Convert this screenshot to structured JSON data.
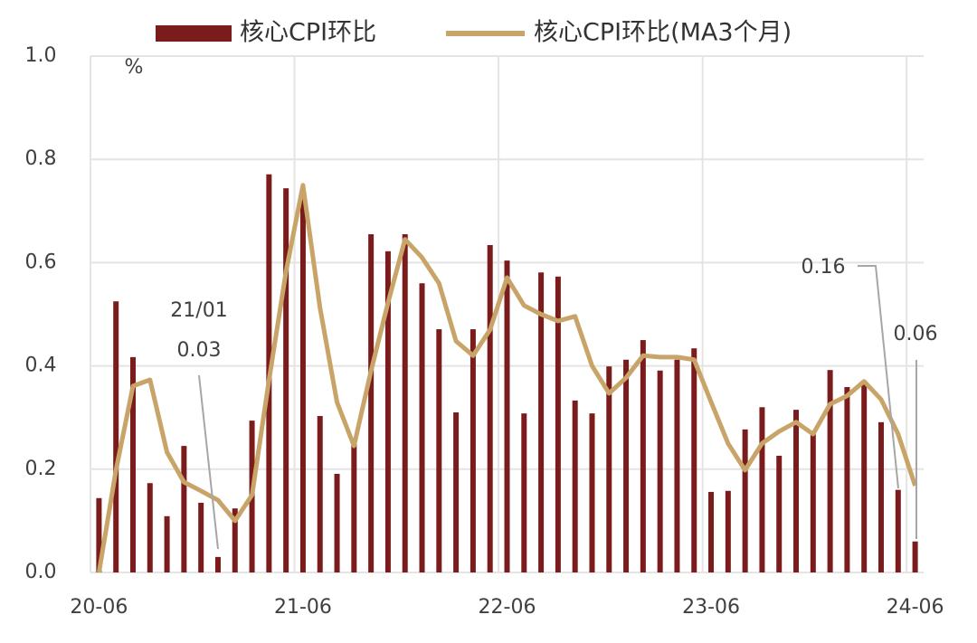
{
  "chart_data": {
    "type": "bar",
    "categories": [
      "20-06",
      null,
      null,
      null,
      null,
      null,
      null,
      null,
      null,
      null,
      null,
      null,
      "21-06",
      null,
      null,
      null,
      null,
      null,
      null,
      null,
      null,
      null,
      null,
      null,
      "22-06",
      null,
      null,
      null,
      null,
      null,
      null,
      null,
      null,
      null,
      null,
      null,
      "23-06",
      null,
      null,
      null,
      null,
      null,
      null,
      null,
      null,
      null,
      null,
      null,
      "24-06"
    ],
    "series": [
      {
        "name": "核心CPI环比",
        "type": "bar",
        "color": "#7b1c1c",
        "values": [
          0.144,
          0.525,
          0.417,
          0.173,
          0.109,
          0.245,
          0.135,
          0.03,
          0.124,
          0.294,
          0.771,
          0.744,
          0.727,
          0.303,
          0.191,
          0.25,
          0.655,
          0.622,
          0.655,
          0.56,
          0.471,
          0.31,
          0.471,
          0.634,
          0.604,
          0.308,
          0.581,
          0.573,
          0.333,
          0.308,
          0.399,
          0.412,
          0.45,
          0.391,
          0.412,
          0.434,
          0.156,
          0.158,
          0.277,
          0.32,
          0.226,
          0.315,
          0.27,
          0.392,
          0.359,
          0.364,
          0.291,
          0.16,
          0.06
        ]
      },
      {
        "name": "核心CPI环比(MA3个月)",
        "type": "line",
        "color": "#c8a468",
        "values": [
          0.0,
          0.198,
          0.361,
          0.373,
          0.233,
          0.175,
          0.158,
          0.14,
          0.1,
          0.15,
          0.373,
          0.583,
          0.75,
          0.513,
          0.33,
          0.245,
          0.39,
          0.522,
          0.645,
          0.61,
          0.56,
          0.448,
          0.42,
          0.47,
          0.571,
          0.517,
          0.5,
          0.487,
          0.496,
          0.4,
          0.347,
          0.377,
          0.42,
          0.417,
          0.417,
          0.412,
          0.33,
          0.25,
          0.198,
          0.25,
          0.273,
          0.291,
          0.268,
          0.326,
          0.342,
          0.37,
          0.335,
          0.268,
          0.168
        ]
      }
    ],
    "annotations": [
      "%",
      "21/01"
    ],
    "ylim": [
      0,
      1.0
    ],
    "yticks": [
      {
        "value": 0,
        "label": "0.0"
      },
      0.2,
      0.4,
      0.6,
      0.8,
      {
        "value": 1.0,
        "label": "1.0"
      }
    ],
    "grid": true
  }
}
